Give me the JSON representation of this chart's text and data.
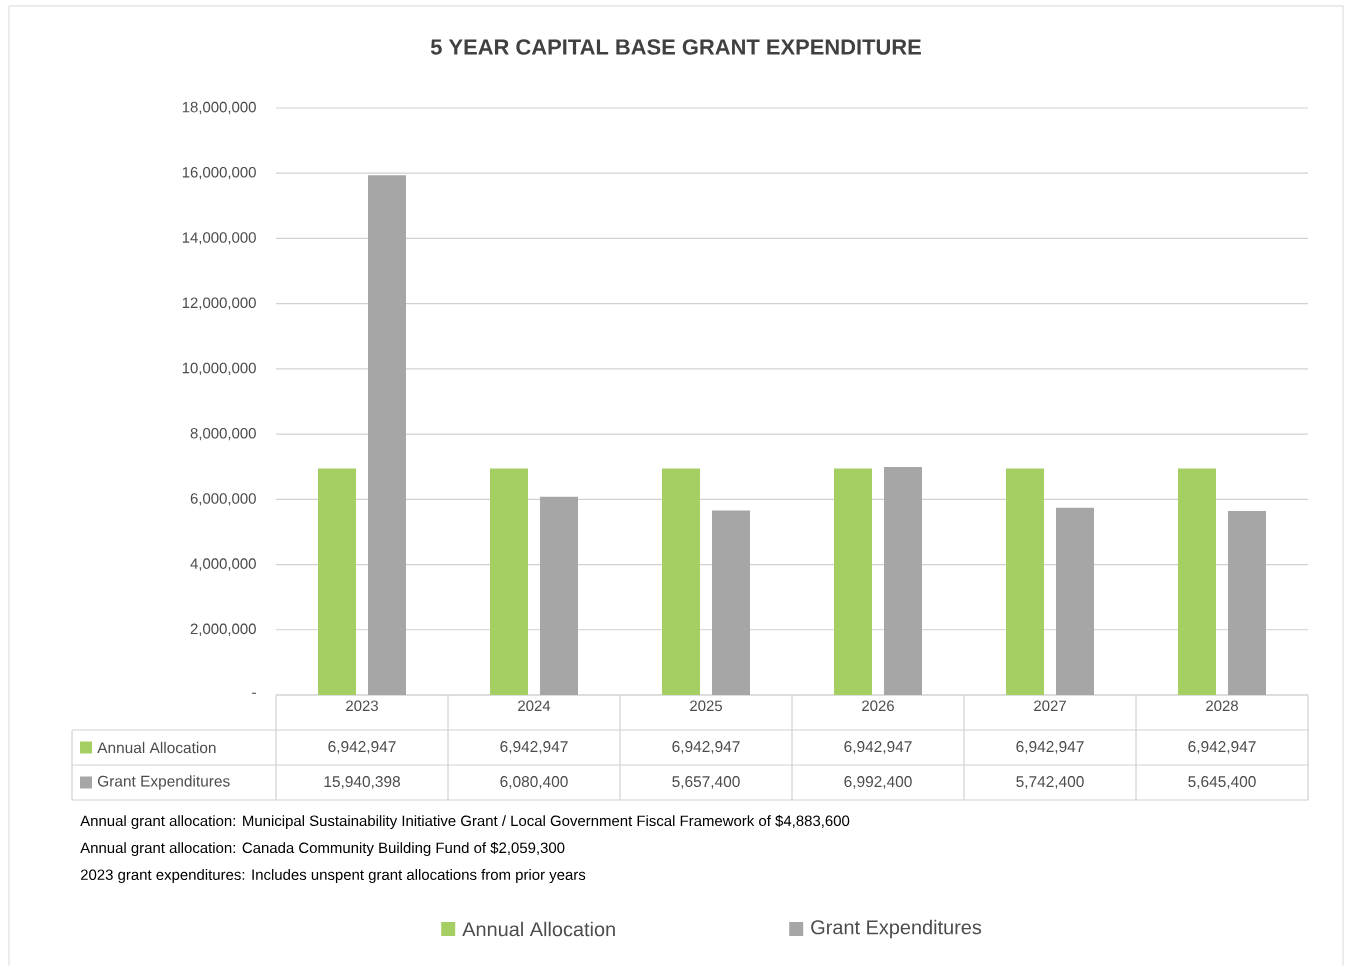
{
  "chart_data": {
    "type": "bar",
    "title": "5 YEAR CAPITAL BASE GRANT EXPENDITURE",
    "categories": [
      "2023",
      "2024",
      "2025",
      "2026",
      "2027",
      "2028"
    ],
    "series": [
      {
        "name": "Annual Allocation",
        "color": "#a5cf63",
        "values": [
          6942947,
          6942947,
          6942947,
          6942947,
          6942947,
          6942947
        ],
        "value_labels": [
          "6,942,947",
          "6,942,947",
          "6,942,947",
          "6,942,947",
          "6,942,947",
          "6,942,947"
        ]
      },
      {
        "name": "Grant Expenditures",
        "color": "#a6a6a6",
        "values": [
          15940398,
          6080400,
          5657400,
          6992400,
          5742400,
          5645400
        ],
        "value_labels": [
          "15,940,398",
          "6,080,400",
          "5,657,400",
          "6,992,400",
          "5,742,400",
          "5,645,400"
        ]
      }
    ],
    "ylim": [
      0,
      18000000
    ],
    "yticks": [
      {
        "value": 0,
        "label": "-"
      },
      {
        "value": 2000000,
        "label": "2,000,000"
      },
      {
        "value": 4000000,
        "label": "4,000,000"
      },
      {
        "value": 6000000,
        "label": "6,000,000"
      },
      {
        "value": 8000000,
        "label": "8,000,000"
      },
      {
        "value": 10000000,
        "label": "10,000,000"
      },
      {
        "value": 12000000,
        "label": "12,000,000"
      },
      {
        "value": 14000000,
        "label": "14,000,000"
      },
      {
        "value": 16000000,
        "label": "16,000,000"
      },
      {
        "value": 18000000,
        "label": "18,000,000"
      }
    ],
    "grid": "y",
    "legend": "bottom",
    "annotations": [
      "Annual grant allocation:  Municipal Sustainability Initiative Grant / Local Government Fiscal Framework of $4,883,600",
      "Annual grant allocation:  Canada Community Building Fund of $2,059,300",
      "2023 grant expenditures:  Includes unspent grant allocations from prior years"
    ]
  }
}
